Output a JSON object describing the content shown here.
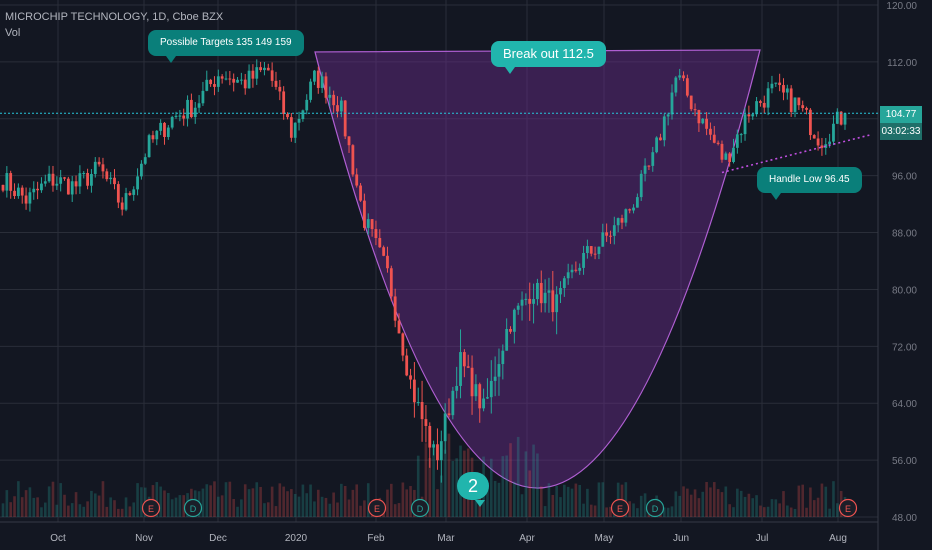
{
  "header": {
    "symbol_line": "MICROCHIP TECHNOLOGY, 1D, Cboe BZX",
    "volume_label": "Vol"
  },
  "annotations": {
    "targets": "Possible Targets  135  149  159",
    "breakout": "Break out 112.5",
    "handle_low": "Handle Low   96.45",
    "count": "2"
  },
  "price_scale": {
    "last_price": "104.77",
    "countdown": "03:02:33"
  },
  "events": {
    "earnings": "E",
    "dividend": "D"
  },
  "colors": {
    "background": "#131722",
    "up": "#26a69a",
    "down": "#ef5350",
    "cup_fill": "#6a2c8c",
    "cup_line": "#b05fd3",
    "bubble": "#0a7f7a",
    "bubble_big": "#21b5ad",
    "last_price_line": "#26c6da"
  },
  "chart_data": {
    "type": "candlestick",
    "title": "MICROCHIP TECHNOLOGY, 1D, Cboe BZX",
    "xlabel": "",
    "ylabel": "",
    "ylim": [
      48,
      120
    ],
    "y_ticks": [
      "48.00",
      "56.00",
      "64.00",
      "72.00",
      "80.00",
      "88.00",
      "96.00",
      "104.00",
      "112.00",
      "120.00"
    ],
    "x_ticks": [
      "Oct",
      "Nov",
      "Dec",
      "2020",
      "Feb",
      "Mar",
      "Apr",
      "May",
      "Jun",
      "Jul",
      "Aug"
    ],
    "last_close": 104.77,
    "breakout_level": 112.5,
    "handle_low": 96.45,
    "possible_targets": [
      135,
      149,
      159
    ],
    "events": [
      {
        "type": "E",
        "month": "Nov"
      },
      {
        "type": "D",
        "month": "Nov"
      },
      {
        "type": "E",
        "month": "Feb"
      },
      {
        "type": "D",
        "month": "Feb"
      },
      {
        "type": "E",
        "month": "May"
      },
      {
        "type": "D",
        "month": "May"
      },
      {
        "type": "E",
        "month": "Aug"
      }
    ],
    "price_path": [
      [
        "Sep",
        95.5
      ],
      [
        "Oct",
        92.5
      ],
      [
        "Oct",
        95.5
      ],
      [
        "Nov",
        94.5
      ],
      [
        "Nov",
        97.0
      ],
      [
        "Dec",
        91.5
      ],
      [
        "Dec",
        100.0
      ],
      [
        "Dec",
        104.0
      ],
      [
        "2020",
        106.0
      ],
      [
        "2020",
        110.5
      ],
      [
        "Jan",
        109.0
      ],
      [
        "Jan",
        111.0
      ],
      [
        "Feb",
        102.0
      ],
      [
        "Feb",
        110.0
      ],
      [
        "Feb",
        106.0
      ],
      [
        "Mar",
        90.0
      ],
      [
        "Mar",
        82.0
      ],
      [
        "Mar",
        66.0
      ],
      [
        "Mar",
        56.0
      ],
      [
        "Mar",
        70.0
      ],
      [
        "Apr",
        63.0
      ],
      [
        "Apr",
        75.0
      ],
      [
        "Apr",
        80.0
      ],
      [
        "May",
        78.0
      ],
      [
        "May",
        84.0
      ],
      [
        "May",
        87.0
      ],
      [
        "May",
        91.0
      ],
      [
        "Jun",
        98.0
      ],
      [
        "Jun",
        110.0
      ],
      [
        "Jun",
        104.0
      ],
      [
        "Jun",
        98.0
      ],
      [
        "Jul",
        105.0
      ],
      [
        "Jul",
        108.0
      ],
      [
        "Jul",
        106.0
      ],
      [
        "Jul",
        101.0
      ],
      [
        "Aug",
        104.77
      ]
    ]
  }
}
